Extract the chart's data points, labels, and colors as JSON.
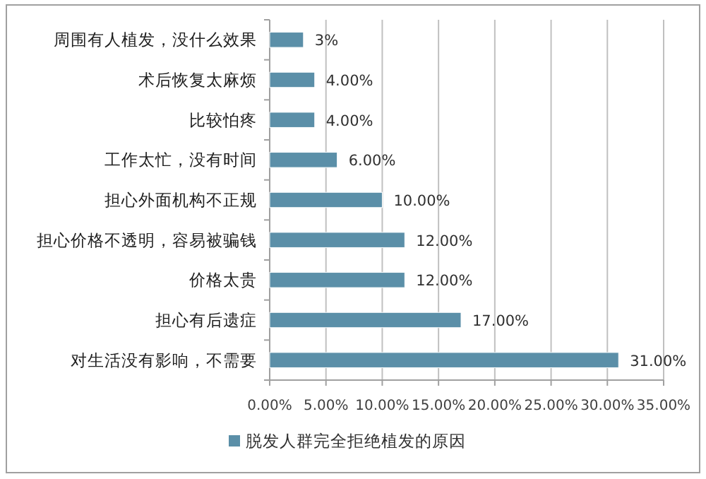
{
  "chart_data": {
    "type": "bar",
    "orientation": "horizontal",
    "categories": [
      "周围有人植发，没什么效果",
      "术后恢复太麻烦",
      "比较怕疼",
      "工作太忙，没有时间",
      "担心外面机构不正规",
      "担心价格不透明，容易被骗钱",
      "价格太贵",
      "担心有后遗症",
      "对生活没有影响，不需要"
    ],
    "series": [
      {
        "name": "脱发人群完全拒绝植发的原因",
        "color": "#5b8fa8",
        "values": [
          3,
          4,
          4,
          6,
          10,
          12,
          12,
          17,
          31
        ],
        "value_labels": [
          "3%",
          "4.00%",
          "4.00%",
          "6.00%",
          "10.00%",
          "12.00%",
          "12.00%",
          "17.00%",
          "31.00%"
        ]
      }
    ],
    "xlim": [
      0,
      35
    ],
    "xticks": [
      {
        "value": 0,
        "label": "0.00%"
      },
      {
        "value": 5,
        "label": "5.00%"
      },
      {
        "value": 10,
        "label": "10.00%"
      },
      {
        "value": 15,
        "label": "15.00%"
      },
      {
        "value": 20,
        "label": "20.00%"
      },
      {
        "value": 25,
        "label": "25.00%"
      },
      {
        "value": 30,
        "label": "30.00%"
      },
      {
        "value": 35,
        "label": "35.00%"
      }
    ],
    "grid": "x",
    "legend": "bottom"
  }
}
